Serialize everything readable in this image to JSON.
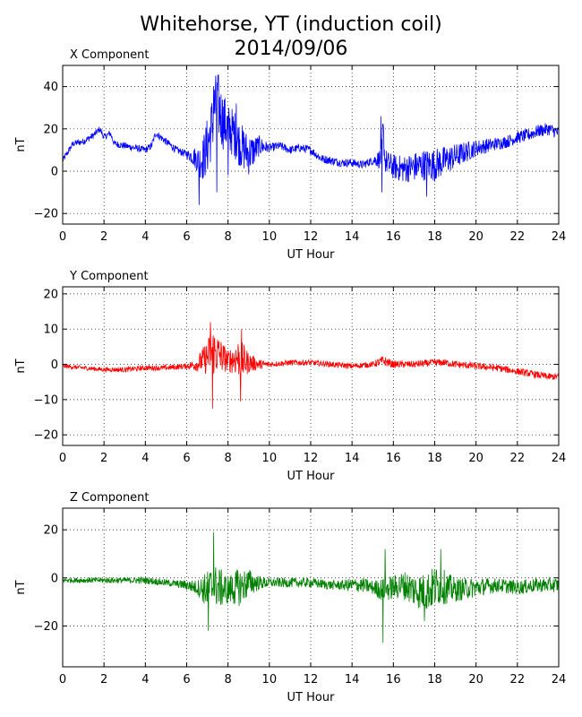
{
  "title": "Whitehorse, YT (induction coil)",
  "subtitle": "2014/09/06",
  "chart_data": [
    {
      "type": "line",
      "title": "X Component",
      "xlabel": "UT Hour",
      "ylabel": "nT",
      "xlim": [
        0,
        24
      ],
      "ylim": [
        -25,
        50
      ],
      "xticks": [
        0,
        2,
        4,
        6,
        8,
        10,
        12,
        14,
        16,
        18,
        20,
        22,
        24
      ],
      "yticks": [
        -20,
        0,
        20,
        40
      ],
      "grid": true,
      "series": [
        {
          "color": "#0000ff",
          "x": [
            0,
            0.5,
            1,
            1.5,
            1.8,
            2,
            2.3,
            2.5,
            3,
            3.5,
            4,
            4.3,
            4.5,
            5,
            5.5,
            6,
            6.3,
            6.6,
            6.8,
            7,
            7.2,
            7.35,
            7.5,
            7.7,
            8,
            8.3,
            8.5,
            8.8,
            9,
            9.3,
            9.5,
            10,
            10.5,
            11,
            11.5,
            12,
            12.5,
            13,
            13.5,
            14,
            14.5,
            15,
            15.4,
            15.5,
            15.6,
            15.8,
            16,
            16.5,
            17,
            17.5,
            18,
            18.5,
            19,
            19.5,
            20,
            20.5,
            21,
            21.5,
            22,
            22.5,
            23,
            23.5,
            24
          ],
          "y": [
            5,
            13,
            14,
            17,
            20,
            16,
            18,
            13,
            12,
            11,
            10,
            12,
            18,
            14,
            10,
            8,
            7,
            5,
            6,
            12,
            20,
            30,
            32,
            25,
            20,
            18,
            14,
            10,
            8,
            10,
            12,
            11,
            12,
            10,
            11,
            10,
            6,
            5,
            4,
            4,
            3,
            5,
            6,
            20,
            5,
            3,
            2,
            1,
            2,
            3,
            3,
            5,
            7,
            9,
            11,
            12,
            13,
            14,
            16,
            17,
            19,
            20,
            18
          ]
        }
      ]
    },
    {
      "type": "line",
      "title": "Y Component",
      "xlabel": "UT Hour",
      "ylabel": "nT",
      "xlim": [
        0,
        24
      ],
      "ylim": [
        -23,
        22
      ],
      "xticks": [
        0,
        2,
        4,
        6,
        8,
        10,
        12,
        14,
        16,
        18,
        20,
        22,
        24
      ],
      "yticks": [
        -20,
        -10,
        0,
        10,
        20
      ],
      "grid": true,
      "series": [
        {
          "color": "#ff0000",
          "x": [
            0,
            1,
            2,
            3,
            4,
            5,
            6,
            6.5,
            7,
            7.2,
            7.5,
            8,
            8.5,
            8.7,
            9,
            9.5,
            10,
            11,
            12,
            13,
            14,
            15,
            15.5,
            16,
            17,
            18,
            18.5,
            19,
            20,
            21,
            22,
            23,
            23.5,
            24
          ],
          "y": [
            -0.5,
            -1,
            -1.5,
            -1.5,
            -1,
            -1,
            -0.5,
            0,
            2,
            4,
            3,
            1,
            2,
            1,
            0.5,
            0,
            0,
            0.5,
            0.5,
            0,
            -0.5,
            0,
            1,
            0,
            0,
            0.5,
            0.5,
            0,
            -0.5,
            -1,
            -2,
            -3,
            -3.5,
            -3.5
          ]
        }
      ]
    },
    {
      "type": "line",
      "title": "Z Component",
      "xlabel": "UT Hour",
      "ylabel": "nT",
      "xlim": [
        0,
        24
      ],
      "ylim": [
        -37,
        29
      ],
      "xticks": [
        0,
        2,
        4,
        6,
        8,
        10,
        12,
        14,
        16,
        18,
        20,
        22,
        24
      ],
      "yticks": [
        -20,
        0,
        20
      ],
      "grid": true,
      "series": [
        {
          "color": "#008000",
          "x": [
            0,
            1,
            2,
            3,
            4,
            5,
            6,
            6.5,
            7,
            7.3,
            7.5,
            8,
            8.5,
            8.8,
            9,
            9.5,
            10,
            11,
            12,
            13,
            14,
            14.5,
            15,
            15.5,
            16,
            16.5,
            17,
            17.5,
            18,
            18.3,
            18.5,
            19,
            20,
            21,
            22,
            23,
            24
          ],
          "y": [
            -1,
            -1,
            -1,
            -1,
            -1,
            -2,
            -3,
            -4,
            -5,
            -3,
            -4,
            -5,
            -4,
            -3,
            -2,
            -2,
            -2,
            -2,
            -2,
            -3,
            -3,
            -3,
            -4,
            -5,
            -4,
            -3,
            -5,
            -6,
            -4,
            -3,
            -4,
            -5,
            -4,
            -3,
            -4,
            -3,
            -3
          ]
        }
      ]
    }
  ]
}
